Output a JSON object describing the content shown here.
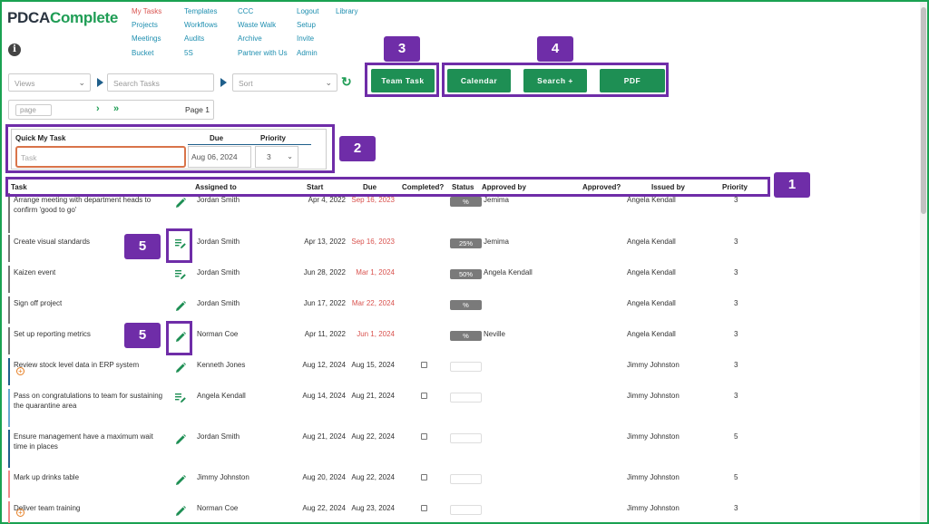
{
  "app": {
    "logo_a": "PDCA",
    "logo_b": "Complete"
  },
  "nav": {
    "col1": [
      "My Tasks",
      "Projects",
      "Meetings",
      "Bucket"
    ],
    "col2": [
      "Templates",
      "Workflows",
      "Audits",
      "5S"
    ],
    "col3": [
      "CCC",
      "Waste Walk",
      "Archive",
      "Partner with Us"
    ],
    "col4": [
      "Logout",
      "Setup",
      "Invite",
      "Admin"
    ],
    "col5": [
      "Library"
    ]
  },
  "toolbar": {
    "views": "Views",
    "search_placeholder": "Search Tasks",
    "sort": "Sort",
    "team_task": "Team Task",
    "calendar": "Calendar",
    "search_plus": "Search +",
    "pdf": "PDF"
  },
  "pager": {
    "placeholder": "page",
    "label": "Page 1"
  },
  "quick": {
    "title": "Quick My Task",
    "due_label": "Due",
    "priority_label": "Priority",
    "task_placeholder": "Task",
    "due_value": "Aug 06, 2024",
    "priority_value": "3"
  },
  "callouts": [
    "1",
    "2",
    "3",
    "4",
    "5",
    "5"
  ],
  "table": {
    "headers": {
      "task": "Task",
      "assigned": "Assigned to",
      "start": "Start",
      "due": "Due",
      "completed": "Completed?",
      "status": "Status",
      "approved_by": "Approved by",
      "approved": "Approved?",
      "issued_by": "Issued by",
      "priority": "Priority"
    },
    "rows": [
      {
        "task": "Arrange meeting with department heads to confirm 'good to go'",
        "assigned": "Jordan Smith",
        "start": "Apr 4, 2022",
        "due": "Sep 16, 2023",
        "overdue": true,
        "status": "%",
        "approved_by": "Jemima",
        "issued_by": "Angela Kendall",
        "priority": "3",
        "icon": "pencil",
        "bar": "#777777"
      },
      {
        "task": "Create visual standards",
        "assigned": "Jordan Smith",
        "start": "Apr 13, 2022",
        "due": "Sep 16, 2023",
        "overdue": true,
        "status": "25%",
        "approved_by": "Jemima",
        "issued_by": "Angela Kendall",
        "priority": "3",
        "icon": "list-edit",
        "bar": "#777777"
      },
      {
        "task": "Kaizen event",
        "assigned": "Jordan Smith",
        "start": "Jun 28, 2022",
        "due": "Mar 1, 2024",
        "overdue": true,
        "status": "50%",
        "approved_by": "Angela Kendall",
        "issued_by": "Angela Kendall",
        "priority": "3",
        "icon": "list-edit",
        "bar": "#777777"
      },
      {
        "task": "Sign off project",
        "assigned": "Jordan Smith",
        "start": "Jun 17, 2022",
        "due": "Mar 22, 2024",
        "overdue": true,
        "status": "%",
        "approved_by": "",
        "issued_by": "Angela Kendall",
        "priority": "3",
        "icon": "pencil",
        "bar": "#777777"
      },
      {
        "task": "Set up reporting metrics",
        "assigned": "Norman Coe",
        "start": "Apr 11, 2022",
        "due": "Jun 1, 2024",
        "overdue": true,
        "status": "%",
        "approved_by": "Neville",
        "issued_by": "Angela Kendall",
        "priority": "3",
        "icon": "pencil",
        "bar": "#777777"
      },
      {
        "task": "Review stock level data in ERP system",
        "assigned": "Kenneth Jones",
        "start": "Aug 12, 2024",
        "due": "Aug 15, 2024",
        "overdue": false,
        "status": "",
        "approved_by": "",
        "issued_by": "Jimmy Johnston",
        "priority": "3",
        "icon": "pencil",
        "bar": "#1f5f8b",
        "plus": true
      },
      {
        "task": "Pass on congratulations to team for sustaining the quarantine area",
        "assigned": "Angela Kendall",
        "start": "Aug 14, 2024",
        "due": "Aug 21, 2024",
        "overdue": false,
        "status": "",
        "approved_by": "",
        "issued_by": "Jimmy Johnston",
        "priority": "3",
        "icon": "list-edit",
        "bar": "#6aa9cf"
      },
      {
        "task": "Ensure management have a maximum wait time in places",
        "assigned": "Jordan Smith",
        "start": "Aug 21, 2024",
        "due": "Aug 22, 2024",
        "overdue": false,
        "status": "",
        "approved_by": "",
        "issued_by": "Jimmy Johnston",
        "priority": "5",
        "icon": "pencil",
        "bar": "#1f5f8b"
      },
      {
        "task": "Mark up drinks table",
        "assigned": "Jimmy Johnston",
        "start": "Aug 20, 2024",
        "due": "Aug 22, 2024",
        "overdue": false,
        "status": "",
        "approved_by": "",
        "issued_by": "Jimmy Johnston",
        "priority": "5",
        "icon": "pencil",
        "bar": "#f08a8a"
      },
      {
        "task": "Deliver team training",
        "assigned": "Norman Coe",
        "start": "Aug 22, 2024",
        "due": "Aug 23, 2024",
        "overdue": false,
        "status": "",
        "approved_by": "",
        "issued_by": "Jimmy Johnston",
        "priority": "3",
        "icon": "pencil",
        "bar": "#f08a8a",
        "plus": true
      }
    ]
  },
  "colors": {
    "green": "#1e8f54",
    "purple": "#6f2da8",
    "red": "#d9534f",
    "link": "#1f8fb0"
  }
}
